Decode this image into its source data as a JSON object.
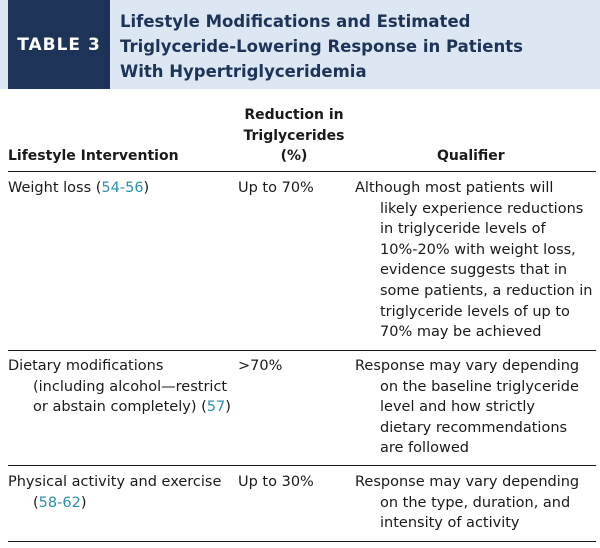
{
  "table": {
    "label": "TABLE 3",
    "title_lines": [
      "Lifestyle Modifications and Estimated",
      "Triglyceride-Lowering Response in Patients",
      "With Hypertriglyceridemia"
    ],
    "columns": {
      "intervention": "Lifestyle Intervention",
      "reduction_lines": [
        "Reduction in",
        "Triglycerides",
        "(%)"
      ],
      "qualifier": "Qualifier"
    },
    "rows": [
      {
        "intervention_text": "Weight loss (",
        "intervention_ref": "54-56",
        "intervention_close": ")",
        "reduction": "Up to 70%",
        "qualifier_lines": [
          "Although most patients will",
          "likely experience reductions",
          "in triglyceride levels of",
          "10%-20% with weight loss,",
          "evidence suggests that in",
          "some patients, a reduction in",
          "triglyceride levels of up to",
          "70% may be achieved"
        ]
      },
      {
        "intervention_line1": "Dietary modifications",
        "intervention_line2": "(including alcohol—restrict",
        "intervention_line3_text": "or abstain completely) (",
        "intervention_ref": "57",
        "intervention_close": ")",
        "reduction": ">70%",
        "qualifier_lines": [
          "Response may vary depending",
          "on the baseline triglyceride",
          "level and how strictly",
          "dietary recommendations",
          "are followed"
        ]
      },
      {
        "intervention_line1": "Physical activity and exercise",
        "intervention_line2_open": "(",
        "intervention_ref": "58-62",
        "intervention_close": ")",
        "reduction": "Up to 30%",
        "qualifier_lines": [
          "Response may vary depending",
          "on the type, duration, and",
          "intensity of activity"
        ]
      }
    ]
  },
  "colors": {
    "header_band": "#dce7f3",
    "label_box": "#1d3357",
    "title_text": "#1d3357",
    "reference_link": "#2b8fb0"
  }
}
